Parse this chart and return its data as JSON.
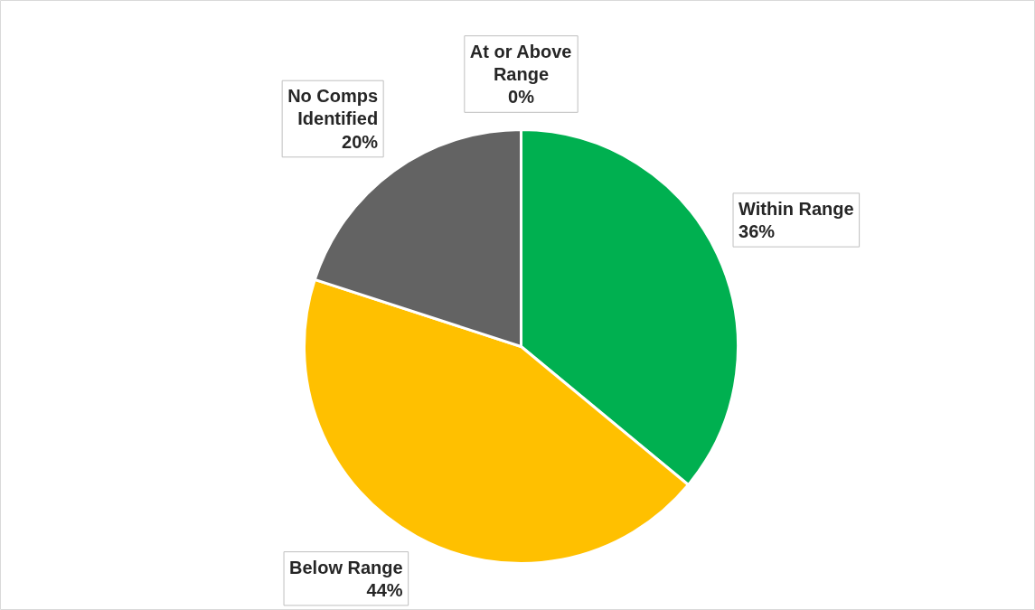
{
  "chart_data": {
    "type": "pie",
    "categories": [
      "Within Range",
      "Below Range",
      "No Comps Identified",
      "At or Above Range"
    ],
    "values": [
      36,
      44,
      20,
      0
    ],
    "colors": [
      "#00b050",
      "#ffc000",
      "#636363",
      "#7f7f7f"
    ],
    "value_labels": [
      "36%",
      "44%",
      "20%",
      "0%"
    ]
  }
}
